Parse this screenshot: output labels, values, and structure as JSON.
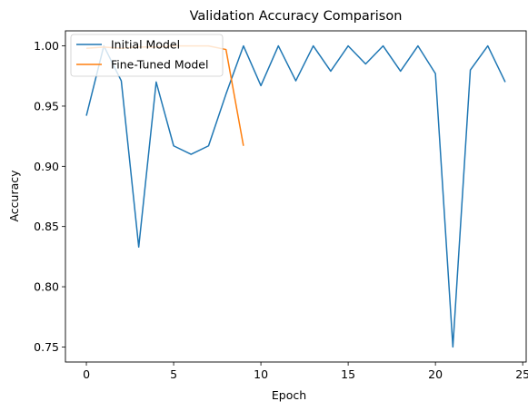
{
  "chart_data": {
    "type": "line",
    "title": "Validation Accuracy Comparison",
    "xlabel": "Epoch",
    "ylabel": "Accuracy",
    "xlim": [
      -1.2,
      25.2
    ],
    "ylim": [
      0.7375,
      1.0125
    ],
    "xticks": [
      0,
      5,
      10,
      15,
      20,
      25
    ],
    "yticks": [
      0.75,
      0.8,
      0.85,
      0.9,
      0.95,
      1.0
    ],
    "ytick_labels": [
      "0.75",
      "0.80",
      "0.85",
      "0.90",
      "0.95",
      "1.00"
    ],
    "grid": false,
    "legend_position": "top-left",
    "series": [
      {
        "name": "Initial Model",
        "color": "#1f77b4",
        "x": [
          0,
          1,
          2,
          3,
          4,
          5,
          6,
          7,
          8,
          9,
          10,
          11,
          12,
          13,
          14,
          15,
          16,
          17,
          18,
          19,
          20,
          21,
          22,
          23,
          24
        ],
        "y": [
          0.942,
          1.0,
          0.971,
          0.833,
          0.97,
          0.917,
          0.91,
          0.917,
          0.96,
          1.0,
          0.967,
          1.0,
          0.971,
          1.0,
          0.979,
          1.0,
          0.985,
          1.0,
          0.979,
          1.0,
          0.977,
          0.75,
          0.98,
          1.0,
          0.97
        ]
      },
      {
        "name": "Fine-Tuned Model",
        "color": "#ff7f0e",
        "x": [
          0,
          1,
          2,
          3,
          4,
          5,
          6,
          7,
          8,
          9
        ],
        "y": [
          0.998,
          0.999,
          0.998,
          0.999,
          0.999,
          1.0,
          1.0,
          1.0,
          0.997,
          0.917
        ]
      }
    ]
  }
}
